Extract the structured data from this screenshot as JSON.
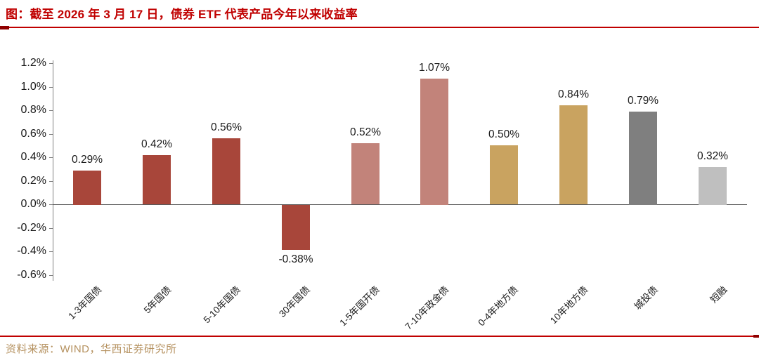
{
  "header": {
    "title": "图：截至 2026 年 3 月 17 日，债券 ETF 代表产品今年以来收益率"
  },
  "footer": {
    "source": "资料来源：WIND，华西证券研究所"
  },
  "colors": {
    "title_red": "#C00000",
    "rule_red": "#C00000",
    "rule_dark": "#8F0000",
    "source_gold": "#B5915F",
    "axis_gray": "#808080",
    "zero_line": "#595959",
    "dark_red_bar": "#A8463A",
    "rose_bar": "#C2837A",
    "gold_bar": "#C9A360",
    "dark_gray_bar": "#7F7F7F",
    "light_gray_bar": "#BFBFBF"
  },
  "chart_data": {
    "type": "bar",
    "title": "截至 2026 年 3 月 17 日，债券 ETF 代表产品今年以来收益率",
    "categories": [
      "1-3年国债",
      "5年国债",
      "5-10年国债",
      "30年国债",
      "1-5年国开债",
      "7-10年政金债",
      "0-4年地方债",
      "10年地方债",
      "城投债",
      "短融"
    ],
    "values": [
      0.29,
      0.42,
      0.56,
      -0.38,
      0.52,
      1.07,
      0.5,
      0.84,
      0.79,
      0.32
    ],
    "data_labels": [
      "0.29%",
      "0.42%",
      "0.56%",
      "-0.38%",
      "0.52%",
      "1.07%",
      "0.50%",
      "0.84%",
      "0.79%",
      "0.32%"
    ],
    "bar_colors": [
      "#A8463A",
      "#A8463A",
      "#A8463A",
      "#A8463A",
      "#C2837A",
      "#C2837A",
      "#C9A360",
      "#C9A360",
      "#7F7F7F",
      "#BFBFBF"
    ],
    "xlabel": "",
    "ylabel": "",
    "ylim": [
      -0.6,
      1.2
    ],
    "ytick_step": 0.2,
    "ytick_labels": [
      "1.2%",
      "1.0%",
      "0.8%",
      "0.6%",
      "0.4%",
      "0.2%",
      "0.0%",
      "-0.2%",
      "-0.4%",
      "-0.6%"
    ],
    "grid": false,
    "legend": "none"
  }
}
